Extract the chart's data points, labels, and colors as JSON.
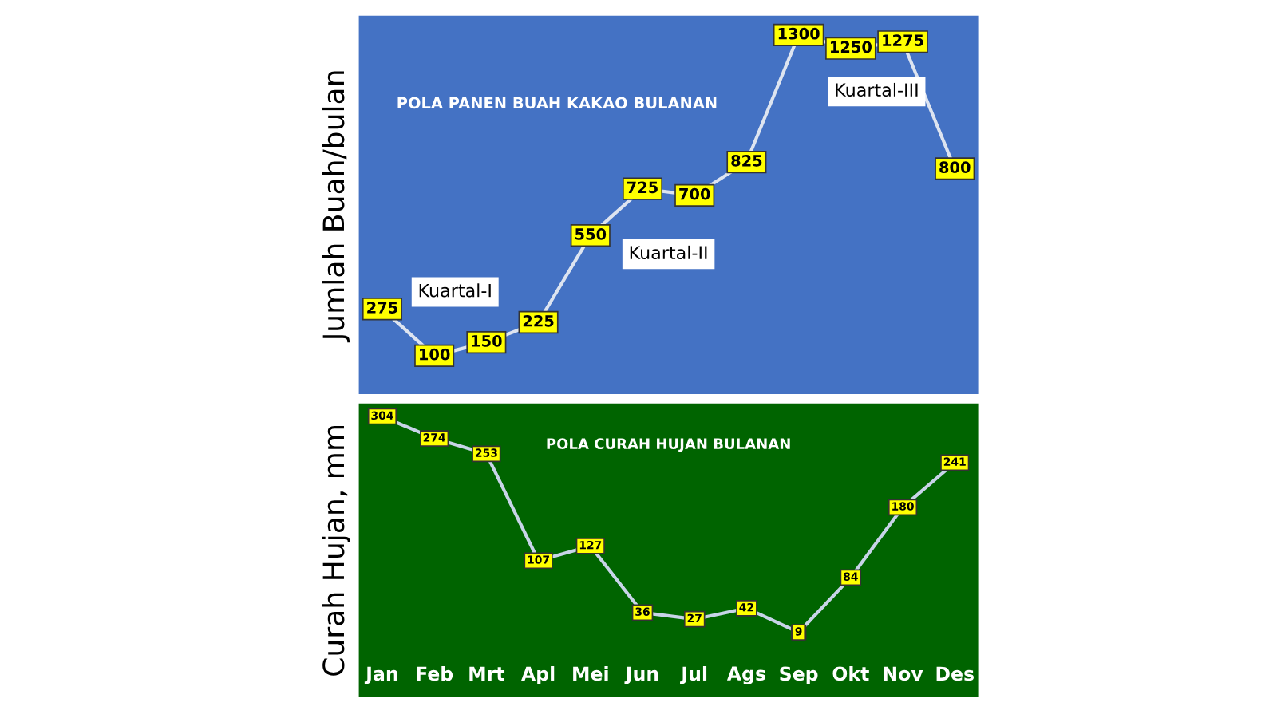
{
  "chart_data": [
    {
      "type": "line",
      "title": "POLA PANEN BUAH KAKAO BULANAN",
      "ylabel": "Jumlah Buah/bulan",
      "categories": [
        null,
        null,
        null,
        null,
        null,
        null,
        null,
        null,
        null,
        null,
        null,
        null
      ],
      "series": [
        {
          "color": "#dde4f0",
          "values": [
            275,
            100,
            150,
            225,
            550,
            725,
            700,
            825,
            1300,
            1250,
            1275,
            800
          ]
        }
      ],
      "annotations": [
        "Kuartal-I",
        "Kuartal-II",
        "Kuartal-III"
      ],
      "data_labels": true,
      "tick_labels": false,
      "grid": false,
      "legend": false,
      "marker": "square",
      "line_style": "solid"
    },
    {
      "type": "line",
      "title": "POLA CURAH HUJAN BULANAN",
      "ylabel": "Curah Hujan, mm",
      "categories": [
        "Jan",
        "Feb",
        "Mrt",
        "Apl",
        "Mei",
        "Jun",
        "Jul",
        "Ags",
        "Sep",
        "Okt",
        "Nov",
        "Des"
      ],
      "series": [
        {
          "color": "#c8d4e8",
          "values": [
            304,
            274,
            253,
            107,
            127,
            36,
            27,
            42,
            9,
            84,
            180,
            241
          ]
        }
      ],
      "data_labels": true,
      "tick_labels": "x",
      "grid": false,
      "legend": false,
      "marker": "square",
      "line_style": "solid"
    }
  ]
}
